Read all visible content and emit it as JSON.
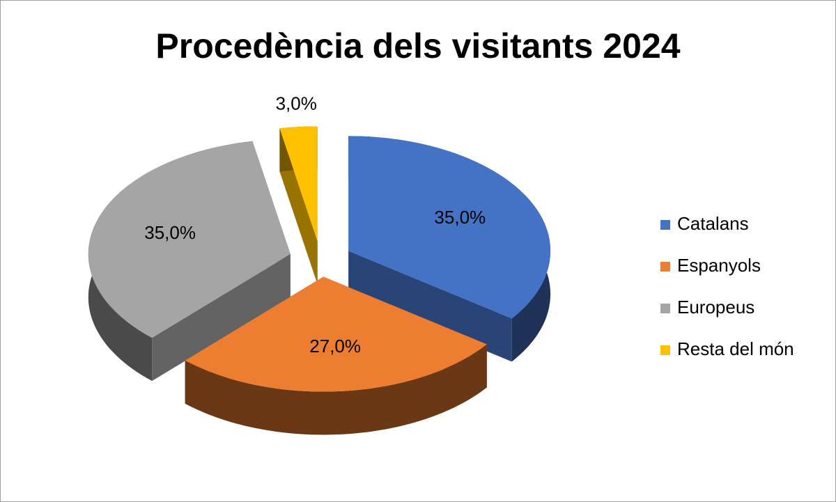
{
  "chart_data": {
    "type": "pie",
    "title": "Procedència dels visitants 2024",
    "categories": [
      "Catalans",
      "Espanyols",
      "Europeus",
      "Resta del món"
    ],
    "values": [
      35,
      27,
      35,
      3
    ],
    "value_labels": [
      "35,0%",
      "27,0%",
      "35,0%",
      "3,0%"
    ],
    "colors": [
      "#4472c4",
      "#ed7d31",
      "#a5a5a5",
      "#ffc000"
    ],
    "legend": "right"
  }
}
